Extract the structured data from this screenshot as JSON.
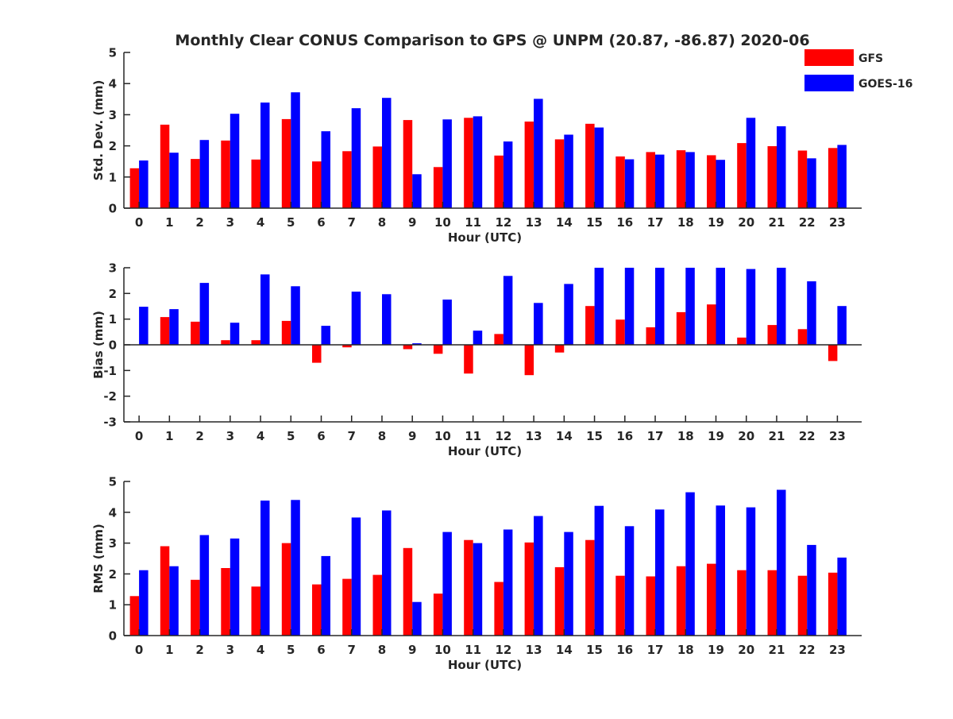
{
  "title": "Monthly Clear CONUS Comparison to GPS @ UNPM (20.87, -86.87) 2020-06",
  "colors": {
    "GFS": "#ff0000",
    "GOES-16": "#0000ff",
    "axis": "#262626",
    "background": "#ffffff"
  },
  "legend": {
    "placement": "top-right",
    "entries": [
      "GFS",
      "GOES-16"
    ]
  },
  "chart_data": [
    {
      "type": "bar",
      "categories": [
        "0",
        "1",
        "2",
        "3",
        "4",
        "5",
        "6",
        "7",
        "8",
        "9",
        "10",
        "11",
        "12",
        "13",
        "14",
        "15",
        "16",
        "17",
        "18",
        "19",
        "20",
        "21",
        "22",
        "23"
      ],
      "xlabel": "Hour (UTC)",
      "ylabel": "Std. Dev. (mm)",
      "ylim": [
        0,
        5
      ],
      "yticks": [
        "0",
        "1",
        "2",
        "3",
        "4",
        "5"
      ],
      "grid": false,
      "series": [
        {
          "name": "GFS",
          "values": [
            1.28,
            2.68,
            1.58,
            2.17,
            1.56,
            2.86,
            1.5,
            1.83,
            1.98,
            2.83,
            1.32,
            2.9,
            1.69,
            2.78,
            2.21,
            2.71,
            1.66,
            1.8,
            1.86,
            1.7,
            2.09,
            1.99,
            1.85,
            1.93
          ]
        },
        {
          "name": "GOES-16",
          "values": [
            1.53,
            1.78,
            2.19,
            3.03,
            3.39,
            3.72,
            2.47,
            3.21,
            3.54,
            1.09,
            2.85,
            2.95,
            2.14,
            3.51,
            2.36,
            2.59,
            1.57,
            1.72,
            1.8,
            1.55,
            2.9,
            2.63,
            1.6,
            2.03
          ]
        }
      ]
    },
    {
      "type": "bar",
      "categories": [
        "0",
        "1",
        "2",
        "3",
        "4",
        "5",
        "6",
        "7",
        "8",
        "9",
        "10",
        "11",
        "12",
        "13",
        "14",
        "15",
        "16",
        "17",
        "18",
        "19",
        "20",
        "21",
        "22",
        "23"
      ],
      "xlabel": "Hour (UTC)",
      "ylabel": "Bias (mm)",
      "ylim": [
        -3,
        3
      ],
      "yticks": [
        "-3",
        "-2",
        "-1",
        "0",
        "1",
        "2",
        "3"
      ],
      "grid": false,
      "series": [
        {
          "name": "GFS",
          "values": [
            0.0,
            1.08,
            0.9,
            0.18,
            0.18,
            0.93,
            -0.7,
            -0.1,
            0.0,
            -0.17,
            -0.35,
            -1.12,
            0.42,
            -1.18,
            -0.3,
            1.51,
            0.98,
            0.68,
            1.27,
            1.57,
            0.28,
            0.77,
            0.61,
            -0.63
          ]
        },
        {
          "name": "GOES-16",
          "values": [
            1.48,
            1.39,
            2.41,
            0.86,
            2.74,
            2.28,
            0.74,
            2.07,
            1.97,
            0.06,
            1.76,
            0.55,
            2.68,
            1.63,
            2.37,
            3.0,
            3.0,
            3.0,
            3.0,
            3.0,
            2.95,
            3.0,
            2.47,
            1.51
          ]
        }
      ]
    },
    {
      "type": "bar",
      "categories": [
        "0",
        "1",
        "2",
        "3",
        "4",
        "5",
        "6",
        "7",
        "8",
        "9",
        "10",
        "11",
        "12",
        "13",
        "14",
        "15",
        "16",
        "17",
        "18",
        "19",
        "20",
        "21",
        "22",
        "23"
      ],
      "xlabel": "Hour (UTC)",
      "ylabel": "RMS (mm)",
      "ylim": [
        0,
        5
      ],
      "yticks": [
        "0",
        "1",
        "2",
        "3",
        "4",
        "5"
      ],
      "grid": false,
      "series": [
        {
          "name": "GFS",
          "values": [
            1.28,
            2.9,
            1.81,
            2.19,
            1.59,
            3.0,
            1.66,
            1.84,
            1.97,
            2.84,
            1.36,
            3.1,
            1.74,
            3.02,
            2.22,
            3.1,
            1.94,
            1.92,
            2.25,
            2.33,
            2.12,
            2.12,
            1.94,
            2.04
          ]
        },
        {
          "name": "GOES-16",
          "values": [
            2.12,
            2.25,
            3.26,
            3.15,
            4.38,
            4.4,
            2.58,
            3.83,
            4.06,
            1.09,
            3.36,
            3.0,
            3.44,
            3.88,
            3.36,
            4.21,
            3.55,
            4.09,
            4.65,
            4.22,
            4.16,
            4.73,
            2.94,
            2.53
          ]
        }
      ]
    }
  ]
}
